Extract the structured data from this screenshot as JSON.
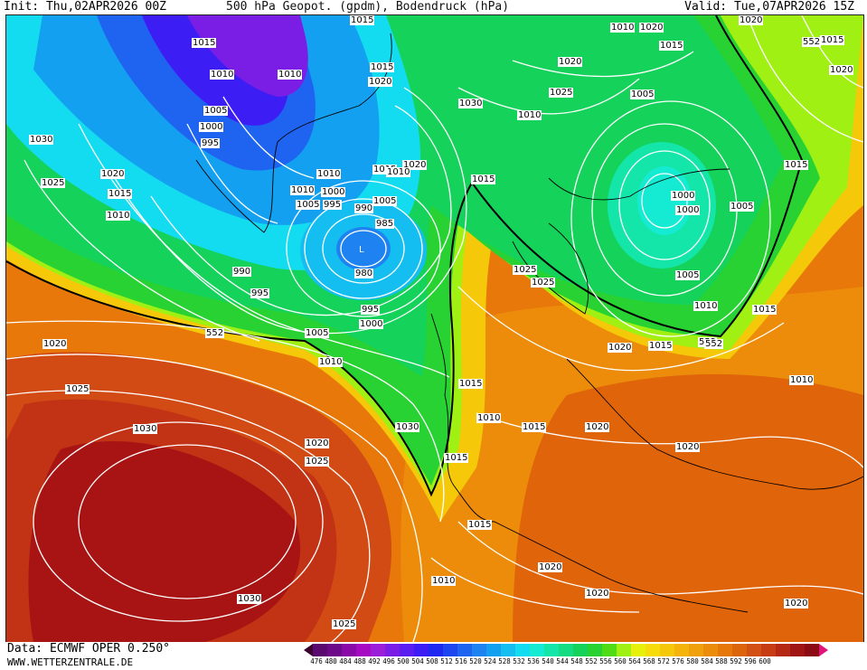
{
  "header": {
    "init": "Init: Thu,02APR2026 00Z",
    "title": "500 hPa Geopot. (gpdm), Bodendruck (hPa)",
    "valid": "Valid: Tue,07APR2026 15Z"
  },
  "footer": {
    "data_source": "Data: ECMWF OPER 0.250°",
    "website": "WWW.WETTERZENTRALE.DE"
  },
  "colors": {
    "scale": [
      "#5a0a6e",
      "#6c0a8a",
      "#8a0aa8",
      "#a60ac2",
      "#9c1ed8",
      "#7a1ee6",
      "#5a1ef0",
      "#3c1ef4",
      "#1e28f0",
      "#1e46f0",
      "#1e64f0",
      "#1e82f0",
      "#14a0f0",
      "#14bef0",
      "#14dcf0",
      "#14ebd2",
      "#14e6aa",
      "#14dc82",
      "#14d25a",
      "#28d232",
      "#50dc14",
      "#a0f014",
      "#e6f00a",
      "#f5dc0a",
      "#f5c80a",
      "#f5b40a",
      "#f0a00a",
      "#eb8c0a",
      "#e6780a",
      "#dc640a",
      "#d25014",
      "#c83c14",
      "#b42814",
      "#a01414",
      "#8c0a14",
      "#c8146e",
      "#e0147a"
    ]
  },
  "legend": {
    "values": [
      "476",
      "480",
      "484",
      "488",
      "492",
      "496",
      "500",
      "504",
      "508",
      "512",
      "516",
      "520",
      "524",
      "528",
      "532",
      "536",
      "540",
      "544",
      "548",
      "552",
      "556",
      "560",
      "564",
      "568",
      "572",
      "576",
      "580",
      "584",
      "588",
      "592",
      "596",
      "600"
    ]
  },
  "isobar_labels": [
    {
      "v": "1015",
      "id": "l1"
    },
    {
      "v": "1015",
      "id": "l2"
    },
    {
      "v": "1010",
      "id": "l3"
    },
    {
      "v": "1010",
      "id": "l4"
    },
    {
      "v": "1005",
      "id": "l5"
    },
    {
      "v": "1000",
      "id": "l6"
    },
    {
      "v": "995",
      "id": "l7"
    },
    {
      "v": "1030",
      "id": "l8"
    },
    {
      "v": "1020",
      "id": "l9"
    },
    {
      "v": "1025",
      "id": "l10"
    },
    {
      "v": "1015",
      "id": "l11"
    },
    {
      "v": "1010",
      "id": "l12"
    },
    {
      "v": "1015",
      "id": "l13"
    },
    {
      "v": "1020",
      "id": "l14"
    },
    {
      "v": "1010",
      "id": "l15"
    },
    {
      "v": "1020",
      "id": "l16"
    },
    {
      "v": "1015",
      "id": "l17"
    },
    {
      "v": "1025",
      "id": "l18"
    },
    {
      "v": "1030",
      "id": "l19"
    },
    {
      "v": "1010",
      "id": "l20"
    },
    {
      "v": "1005",
      "id": "l21"
    },
    {
      "v": "1000",
      "id": "l22"
    },
    {
      "v": "995",
      "id": "l23"
    },
    {
      "v": "1005",
      "id": "l24"
    },
    {
      "v": "1010",
      "id": "l25"
    },
    {
      "v": "990",
      "id": "l26"
    },
    {
      "v": "985",
      "id": "l27"
    },
    {
      "v": "980",
      "id": "l28"
    },
    {
      "v": "990",
      "id": "l29"
    },
    {
      "v": "995",
      "id": "l30"
    },
    {
      "v": "995",
      "id": "l31"
    },
    {
      "v": "1000",
      "id": "l32"
    },
    {
      "v": "1005",
      "id": "l33"
    },
    {
      "v": "1010",
      "id": "l34"
    },
    {
      "v": "552",
      "id": "l35"
    },
    {
      "v": "1025",
      "id": "l36"
    },
    {
      "v": "1030",
      "id": "l37"
    },
    {
      "v": "1005",
      "id": "l38"
    },
    {
      "v": "1000",
      "id": "l39"
    },
    {
      "v": "1005",
      "id": "l40"
    },
    {
      "v": "1005",
      "id": "l41"
    },
    {
      "v": "1010",
      "id": "l42"
    },
    {
      "v": "1015",
      "id": "l43"
    },
    {
      "v": "552",
      "id": "l44"
    },
    {
      "v": "1010",
      "id": "l45"
    },
    {
      "v": "1020",
      "id": "l46"
    },
    {
      "v": "1015",
      "id": "l47"
    },
    {
      "v": "1010",
      "id": "l48"
    },
    {
      "v": "1025",
      "id": "l49"
    },
    {
      "v": "1020",
      "id": "l50"
    },
    {
      "v": "1030",
      "id": "l51"
    },
    {
      "v": "1020",
      "id": "l52"
    },
    {
      "v": "1025",
      "id": "l53"
    },
    {
      "v": "1020",
      "id": "l54"
    },
    {
      "v": "1015",
      "id": "l55"
    },
    {
      "v": "1020",
      "id": "l56"
    },
    {
      "v": "1015",
      "id": "l57"
    },
    {
      "v": "1015",
      "id": "l58"
    },
    {
      "v": "1020",
      "id": "l59"
    },
    {
      "v": "1020",
      "id": "l60"
    },
    {
      "v": "1020",
      "id": "l61"
    },
    {
      "v": "1030",
      "id": "l62"
    },
    {
      "v": "1025",
      "id": "l63"
    },
    {
      "v": "1015",
      "id": "l64"
    },
    {
      "v": "1020",
      "id": "l65"
    },
    {
      "v": "552",
      "id": "l66"
    },
    {
      "v": "1015",
      "id": "l67"
    },
    {
      "v": "1010",
      "id": "l68"
    },
    {
      "v": "552",
      "id": "l69"
    },
    {
      "v": "1020",
      "id": "l70"
    },
    {
      "v": "1015",
      "id": "l71"
    },
    {
      "v": "1015",
      "id": "l72"
    },
    {
      "v": "1020",
      "id": "l73"
    },
    {
      "v": "1020",
      "id": "l74"
    },
    {
      "v": "1025",
      "id": "l75"
    },
    {
      "v": "1010",
      "id": "l76"
    },
    {
      "v": "1015",
      "id": "l77"
    },
    {
      "v": "1010",
      "id": "l78"
    },
    {
      "v": "1000",
      "id": "l79"
    }
  ]
}
